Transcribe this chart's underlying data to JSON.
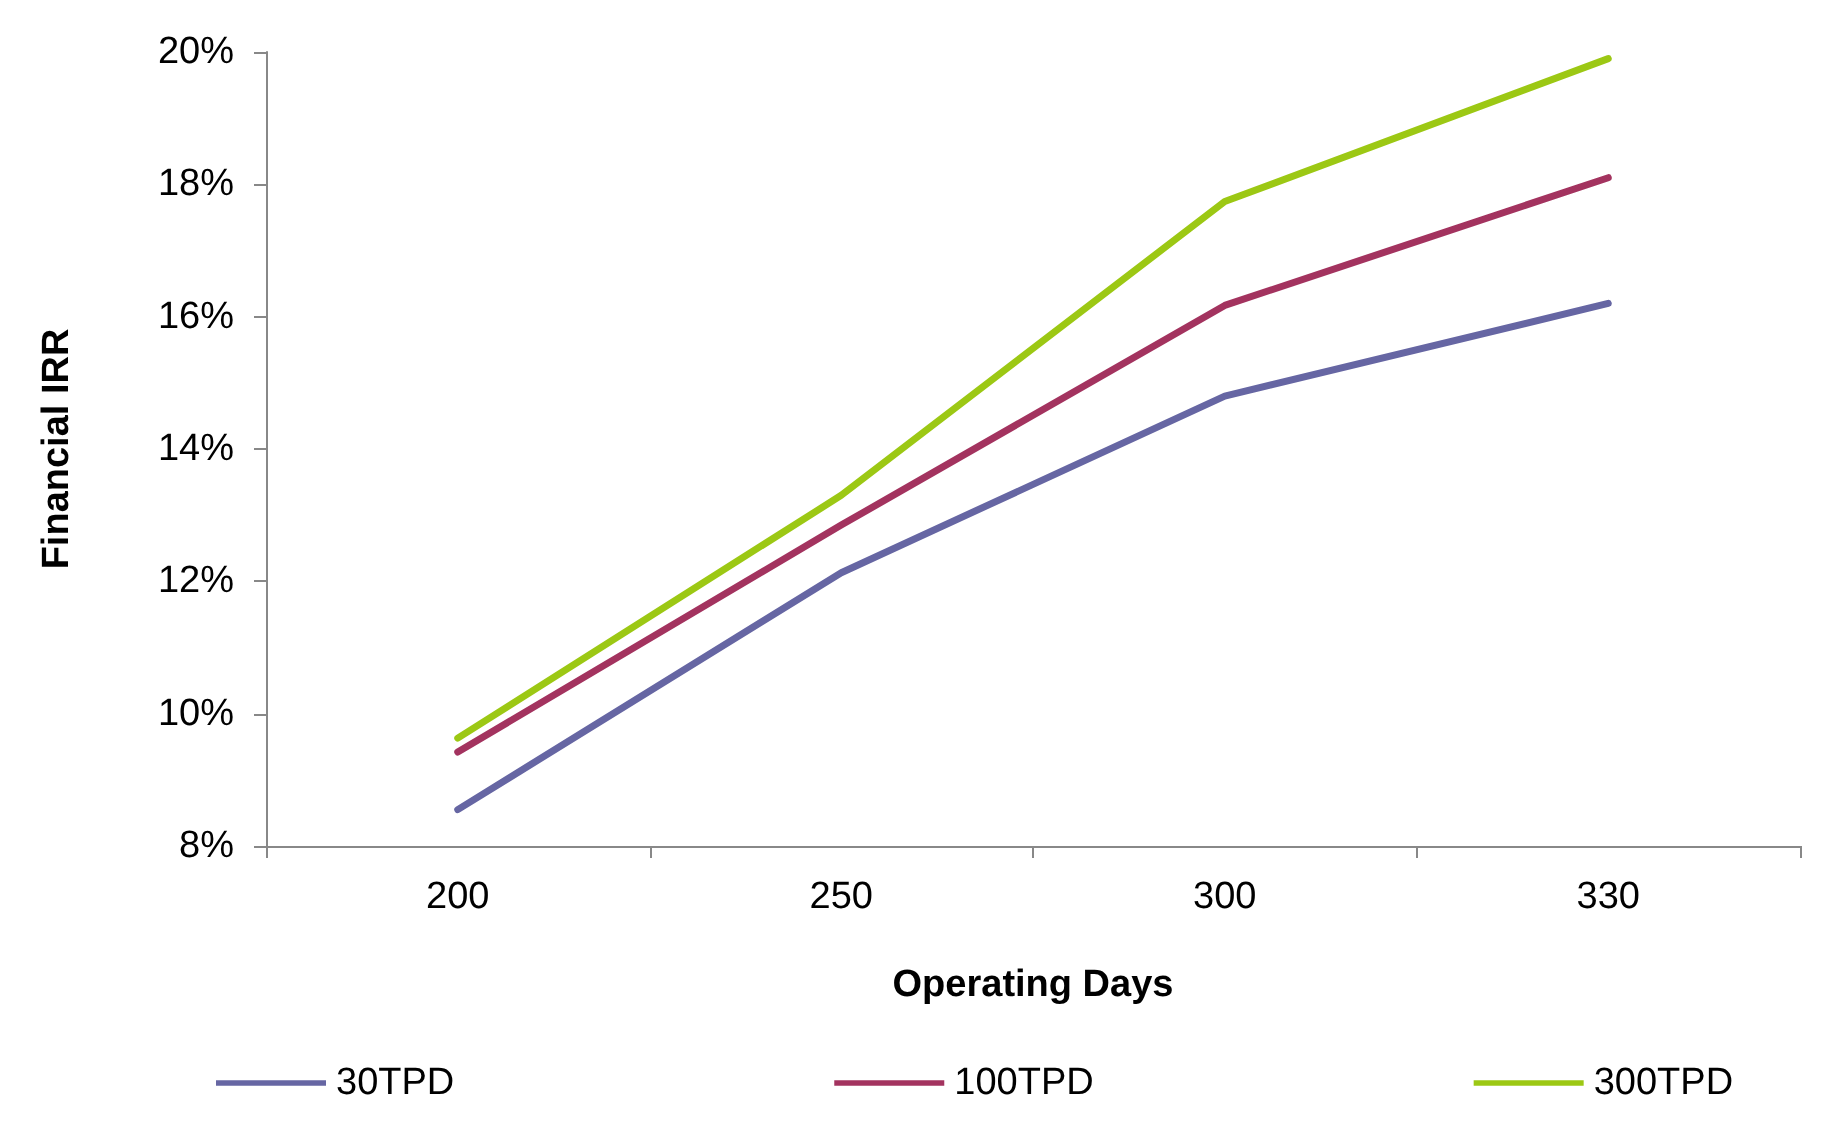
{
  "chart_data": {
    "type": "line",
    "xlabel": "Operating Days",
    "ylabel": "Financial IRR",
    "categories": [
      "200",
      "250",
      "300",
      "330"
    ],
    "series": [
      {
        "name": "30TPD",
        "color": "#6666a3",
        "values": [
          8.55,
          12.13,
          14.8,
          16.2
        ]
      },
      {
        "name": "100TPD",
        "color": "#a3335f",
        "values": [
          9.42,
          12.85,
          16.17,
          18.1
        ]
      },
      {
        "name": "300TPD",
        "color": "#9cc814",
        "values": [
          9.63,
          13.3,
          17.74,
          19.9
        ]
      }
    ],
    "ylim": [
      8,
      20
    ],
    "yticks": [
      {
        "value": 8,
        "label": "8%"
      },
      {
        "value": 10,
        "label": "10%"
      },
      {
        "value": 12,
        "label": "12%"
      },
      {
        "value": 14,
        "label": "14%"
      },
      {
        "value": 16,
        "label": "16%"
      },
      {
        "value": 18,
        "label": "18%"
      },
      {
        "value": 20,
        "label": "20%"
      }
    ],
    "grid": false,
    "legend": "bottom",
    "marker": "none",
    "line_style": "solid"
  }
}
